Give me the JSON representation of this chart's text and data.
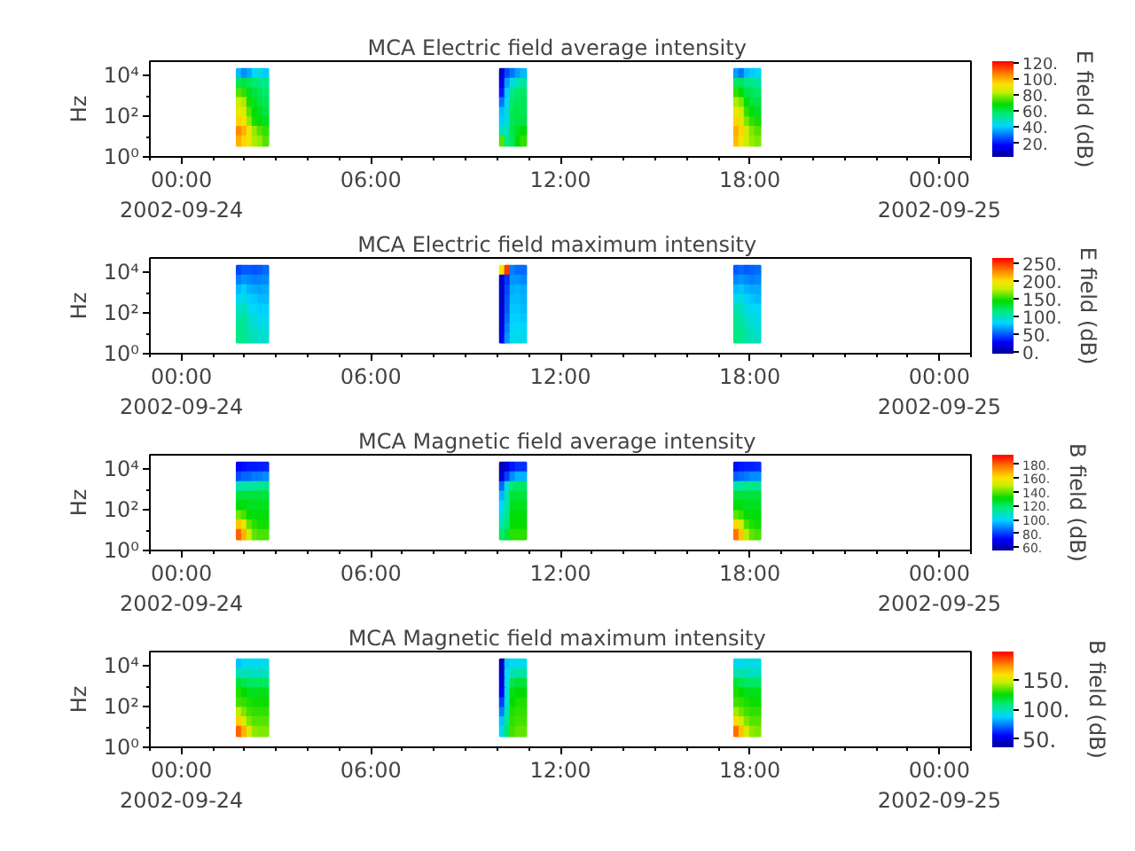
{
  "chart_data": [
    {
      "type": "heatmap",
      "title": "MCA  Electric field average intensity",
      "ylabel": "Hz",
      "clabel": "E field (dB)",
      "log": "y",
      "x": [
        "2002-09-24T01:40",
        "2002-09-24T01:50",
        "2002-09-24T02:00",
        "2002-09-24T02:10",
        "2002-09-24T02:20",
        "2002-09-24T02:30",
        "2002-09-24T02:40",
        "2002-09-24T02:50",
        "2002-09-24T10:00",
        "2002-09-24T10:10",
        "2002-09-24T10:20",
        "2002-09-24T10:30",
        "2002-09-24T10:40",
        "2002-09-24T10:50",
        "2002-09-24T11:00",
        "2002-09-24T17:25",
        "2002-09-24T17:35",
        "2002-09-24T17:45",
        "2002-09-24T17:55",
        "2002-09-24T18:05",
        "2002-09-24T18:15",
        "2002-09-24T18:25"
      ],
      "y": [
        12000,
        4000,
        1350,
        450,
        150,
        50,
        18,
        6
      ],
      "cells": [
        [
          null,
          38,
          33,
          36,
          42,
          45,
          40,
          null,
          null,
          10,
          25,
          30,
          35,
          38,
          null,
          null,
          35,
          30,
          38,
          40,
          42,
          null
        ],
        [
          null,
          60,
          62,
          60,
          58,
          55,
          55,
          null,
          null,
          15,
          35,
          45,
          50,
          52,
          null,
          null,
          58,
          60,
          55,
          55,
          52,
          null
        ],
        [
          null,
          75,
          72,
          65,
          62,
          60,
          58,
          null,
          null,
          20,
          40,
          55,
          58,
          58,
          null,
          null,
          72,
          68,
          62,
          60,
          58,
          null
        ],
        [
          null,
          85,
          82,
          70,
          65,
          62,
          60,
          null,
          null,
          30,
          42,
          58,
          60,
          60,
          null,
          null,
          82,
          78,
          68,
          62,
          62,
          null
        ],
        [
          null,
          90,
          88,
          75,
          68,
          65,
          62,
          null,
          null,
          38,
          45,
          60,
          62,
          60,
          null,
          null,
          90,
          85,
          72,
          68,
          65,
          null
        ],
        [
          null,
          95,
          92,
          80,
          70,
          68,
          65,
          null,
          null,
          40,
          45,
          60,
          62,
          62,
          null,
          null,
          95,
          88,
          78,
          72,
          70,
          null
        ],
        [
          null,
          105,
          100,
          90,
          80,
          75,
          72,
          null,
          null,
          50,
          48,
          62,
          65,
          68,
          null,
          null,
          100,
          95,
          85,
          78,
          75,
          null
        ],
        [
          null,
          100,
          95,
          90,
          82,
          80,
          75,
          null,
          null,
          75,
          55,
          60,
          68,
          72,
          null,
          null,
          98,
          92,
          85,
          80,
          78,
          null
        ]
      ],
      "xlim": [
        "2002-09-23T23:00",
        "2002-09-25T01:00"
      ],
      "xticks": [
        {
          "value": "2002-09-23T23:00",
          "label": null
        },
        {
          "value": "2002-09-24T00:00",
          "label": "00:00\n2002-09-24"
        },
        {
          "value": "2002-09-24T01:00",
          "label": null
        },
        {
          "value": "2002-09-24T02:00",
          "label": null
        },
        {
          "value": "2002-09-24T03:00",
          "label": null
        },
        {
          "value": "2002-09-24T04:00",
          "label": null
        },
        {
          "value": "2002-09-24T05:00",
          "label": null
        },
        {
          "value": "2002-09-24T06:00",
          "label": "06:00"
        },
        {
          "value": "2002-09-24T07:00",
          "label": null
        },
        {
          "value": "2002-09-24T08:00",
          "label": null
        },
        {
          "value": "2002-09-24T09:00",
          "label": null
        },
        {
          "value": "2002-09-24T10:00",
          "label": null
        },
        {
          "value": "2002-09-24T11:00",
          "label": null
        },
        {
          "value": "2002-09-24T12:00",
          "label": "12:00"
        },
        {
          "value": "2002-09-24T13:00",
          "label": null
        },
        {
          "value": "2002-09-24T14:00",
          "label": null
        },
        {
          "value": "2002-09-24T15:00",
          "label": null
        },
        {
          "value": "2002-09-24T16:00",
          "label": null
        },
        {
          "value": "2002-09-24T17:00",
          "label": null
        },
        {
          "value": "2002-09-24T18:00",
          "label": "18:00"
        },
        {
          "value": "2002-09-24T19:00",
          "label": null
        },
        {
          "value": "2002-09-24T20:00",
          "label": null
        },
        {
          "value": "2002-09-24T21:00",
          "label": null
        },
        {
          "value": "2002-09-24T22:00",
          "label": null
        },
        {
          "value": "2002-09-24T23:00",
          "label": null
        },
        {
          "value": "2002-09-25T00:00",
          "label": "00:00\n2002-09-25"
        },
        {
          "value": "2002-09-25T01:00",
          "label": null
        }
      ],
      "ylim": [
        1,
        50000
      ],
      "yticks": [
        {
          "value": 1,
          "label": "10⁰"
        },
        {
          "value": 10,
          "label": null
        },
        {
          "value": 100,
          "label": "10²"
        },
        {
          "value": 1000,
          "label": null
        },
        {
          "value": 10000,
          "label": "10⁴"
        }
      ],
      "clim": [
        3,
        122
      ],
      "cticks": [
        {
          "value": 20,
          "label": "20."
        },
        {
          "value": 40,
          "label": "40."
        },
        {
          "value": 60,
          "label": "60."
        },
        {
          "value": 80,
          "label": "80."
        },
        {
          "value": 100,
          "label": "100."
        },
        {
          "value": 120,
          "label": "120."
        }
      ]
    },
    {
      "type": "heatmap",
      "title": "MCA  Electric field maximum intensity",
      "ylabel": "Hz",
      "clabel": "E field (dB)",
      "log": "y",
      "x": [
        "2002-09-24T01:40",
        "2002-09-24T01:50",
        "2002-09-24T02:00",
        "2002-09-24T02:10",
        "2002-09-24T02:20",
        "2002-09-24T02:30",
        "2002-09-24T02:40",
        "2002-09-24T02:50",
        "2002-09-24T10:00",
        "2002-09-24T10:10",
        "2002-09-24T10:20",
        "2002-09-24T10:30",
        "2002-09-24T10:40",
        "2002-09-24T10:50",
        "2002-09-24T11:00",
        "2002-09-24T17:25",
        "2002-09-24T17:35",
        "2002-09-24T17:45",
        "2002-09-24T17:55",
        "2002-09-24T18:05",
        "2002-09-24T18:15",
        "2002-09-24T18:25"
      ],
      "y": [
        12000,
        4000,
        1350,
        450,
        150,
        50,
        18,
        6
      ],
      "cells": [
        [
          null,
          45,
          50,
          50,
          48,
          50,
          55,
          null,
          null,
          200,
          250,
          60,
          55,
          55,
          null,
          null,
          50,
          55,
          50,
          52,
          55,
          null
        ],
        [
          null,
          60,
          65,
          62,
          60,
          60,
          62,
          null,
          null,
          15,
          40,
          65,
          65,
          62,
          null,
          null,
          62,
          65,
          62,
          60,
          62,
          null
        ],
        [
          null,
          75,
          80,
          72,
          70,
          68,
          70,
          null,
          null,
          12,
          45,
          70,
          72,
          70,
          null,
          null,
          75,
          78,
          72,
          70,
          70,
          null
        ],
        [
          null,
          85,
          90,
          80,
          78,
          75,
          75,
          null,
          null,
          10,
          48,
          75,
          75,
          72,
          null,
          null,
          88,
          90,
          80,
          78,
          75,
          null
        ],
        [
          null,
          95,
          100,
          88,
          82,
          80,
          80,
          null,
          null,
          12,
          50,
          78,
          78,
          75,
          null,
          null,
          100,
          98,
          88,
          85,
          82,
          null
        ],
        [
          null,
          105,
          108,
          95,
          90,
          85,
          85,
          null,
          null,
          15,
          55,
          80,
          80,
          78,
          null,
          null,
          108,
          105,
          95,
          90,
          88,
          null
        ],
        [
          null,
          110,
          112,
          100,
          95,
          92,
          90,
          null,
          null,
          18,
          60,
          82,
          85,
          82,
          null,
          null,
          112,
          110,
          102,
          95,
          92,
          null
        ],
        [
          null,
          112,
          112,
          105,
          100,
          95,
          95,
          null,
          null,
          25,
          65,
          85,
          88,
          85,
          null,
          null,
          115,
          112,
          105,
          100,
          98,
          null
        ]
      ],
      "xlim": [
        "2002-09-23T23:00",
        "2002-09-25T01:00"
      ],
      "xticks": [
        {
          "value": "2002-09-23T23:00",
          "label": null
        },
        {
          "value": "2002-09-24T00:00",
          "label": "00:00\n2002-09-24"
        },
        {
          "value": "2002-09-24T01:00",
          "label": null
        },
        {
          "value": "2002-09-24T02:00",
          "label": null
        },
        {
          "value": "2002-09-24T03:00",
          "label": null
        },
        {
          "value": "2002-09-24T04:00",
          "label": null
        },
        {
          "value": "2002-09-24T05:00",
          "label": null
        },
        {
          "value": "2002-09-24T06:00",
          "label": "06:00"
        },
        {
          "value": "2002-09-24T07:00",
          "label": null
        },
        {
          "value": "2002-09-24T08:00",
          "label": null
        },
        {
          "value": "2002-09-24T09:00",
          "label": null
        },
        {
          "value": "2002-09-24T10:00",
          "label": null
        },
        {
          "value": "2002-09-24T11:00",
          "label": null
        },
        {
          "value": "2002-09-24T12:00",
          "label": "12:00"
        },
        {
          "value": "2002-09-24T13:00",
          "label": null
        },
        {
          "value": "2002-09-24T14:00",
          "label": null
        },
        {
          "value": "2002-09-24T15:00",
          "label": null
        },
        {
          "value": "2002-09-24T16:00",
          "label": null
        },
        {
          "value": "2002-09-24T17:00",
          "label": null
        },
        {
          "value": "2002-09-24T18:00",
          "label": "18:00"
        },
        {
          "value": "2002-09-24T19:00",
          "label": null
        },
        {
          "value": "2002-09-24T20:00",
          "label": null
        },
        {
          "value": "2002-09-24T21:00",
          "label": null
        },
        {
          "value": "2002-09-24T22:00",
          "label": null
        },
        {
          "value": "2002-09-24T23:00",
          "label": null
        },
        {
          "value": "2002-09-25T00:00",
          "label": "00:00\n2002-09-25"
        },
        {
          "value": "2002-09-25T01:00",
          "label": null
        }
      ],
      "ylim": [
        1,
        50000
      ],
      "yticks": [
        {
          "value": 1,
          "label": "10⁰"
        },
        {
          "value": 10,
          "label": null
        },
        {
          "value": 100,
          "label": "10²"
        },
        {
          "value": 1000,
          "label": null
        },
        {
          "value": 10000,
          "label": "10⁴"
        }
      ],
      "clim": [
        -5,
        265
      ],
      "cticks": [
        {
          "value": 0,
          "label": "0."
        },
        {
          "value": 50,
          "label": "50."
        },
        {
          "value": 100,
          "label": "100."
        },
        {
          "value": 150,
          "label": "150."
        },
        {
          "value": 200,
          "label": "200."
        },
        {
          "value": 250,
          "label": "250."
        }
      ]
    },
    {
      "type": "heatmap",
      "title": "MCA  Magnetic field average intensity",
      "ylabel": "Hz",
      "clabel": "B field (dB)",
      "log": "y",
      "x": [
        "2002-09-24T01:40",
        "2002-09-24T01:50",
        "2002-09-24T02:00",
        "2002-09-24T02:10",
        "2002-09-24T02:20",
        "2002-09-24T02:30",
        "2002-09-24T02:40",
        "2002-09-24T02:50",
        "2002-09-24T10:00",
        "2002-09-24T10:10",
        "2002-09-24T10:20",
        "2002-09-24T10:30",
        "2002-09-24T10:40",
        "2002-09-24T10:50",
        "2002-09-24T11:00",
        "2002-09-24T17:25",
        "2002-09-24T17:35",
        "2002-09-24T17:45",
        "2002-09-24T17:55",
        "2002-09-24T18:05",
        "2002-09-24T18:15",
        "2002-09-24T18:25"
      ],
      "y": [
        12000,
        4000,
        1350,
        450,
        150,
        50,
        18,
        6
      ],
      "cells": [
        [
          null,
          72,
          74,
          75,
          75,
          76,
          76,
          null,
          null,
          60,
          68,
          75,
          78,
          78,
          null,
          null,
          73,
          75,
          76,
          76,
          77,
          null
        ],
        [
          null,
          82,
          85,
          85,
          88,
          88,
          90,
          null,
          null,
          65,
          80,
          90,
          95,
          95,
          null,
          null,
          84,
          86,
          88,
          90,
          90,
          null
        ],
        [
          null,
          110,
          112,
          112,
          112,
          115,
          115,
          null,
          null,
          85,
          105,
          118,
          120,
          120,
          null,
          null,
          112,
          112,
          115,
          115,
          115,
          null
        ],
        [
          null,
          125,
          125,
          125,
          125,
          125,
          125,
          null,
          null,
          95,
          110,
          125,
          125,
          125,
          null,
          null,
          125,
          125,
          125,
          125,
          125,
          null
        ],
        [
          null,
          130,
          130,
          128,
          128,
          128,
          128,
          null,
          null,
          100,
          112,
          128,
          128,
          128,
          null,
          null,
          130,
          130,
          128,
          128,
          128,
          null
        ],
        [
          null,
          142,
          138,
          132,
          130,
          130,
          130,
          null,
          null,
          105,
          115,
          130,
          130,
          130,
          null,
          null,
          140,
          136,
          132,
          130,
          130,
          null
        ],
        [
          null,
          165,
          155,
          140,
          135,
          133,
          133,
          null,
          null,
          110,
          118,
          132,
          132,
          132,
          null,
          null,
          162,
          152,
          138,
          134,
          133,
          null
        ],
        [
          null,
          180,
          168,
          150,
          140,
          138,
          138,
          null,
          null,
          120,
          125,
          135,
          135,
          135,
          null,
          null,
          178,
          165,
          148,
          140,
          138,
          null
        ]
      ],
      "xlim": [
        "2002-09-23T23:00",
        "2002-09-25T01:00"
      ],
      "xticks": [
        {
          "value": "2002-09-23T23:00",
          "label": null
        },
        {
          "value": "2002-09-24T00:00",
          "label": "00:00\n2002-09-24"
        },
        {
          "value": "2002-09-24T01:00",
          "label": null
        },
        {
          "value": "2002-09-24T02:00",
          "label": null
        },
        {
          "value": "2002-09-24T03:00",
          "label": null
        },
        {
          "value": "2002-09-24T04:00",
          "label": null
        },
        {
          "value": "2002-09-24T05:00",
          "label": null
        },
        {
          "value": "2002-09-24T06:00",
          "label": "06:00"
        },
        {
          "value": "2002-09-24T07:00",
          "label": null
        },
        {
          "value": "2002-09-24T08:00",
          "label": null
        },
        {
          "value": "2002-09-24T09:00",
          "label": null
        },
        {
          "value": "2002-09-24T10:00",
          "label": null
        },
        {
          "value": "2002-09-24T11:00",
          "label": null
        },
        {
          "value": "2002-09-24T12:00",
          "label": "12:00"
        },
        {
          "value": "2002-09-24T13:00",
          "label": null
        },
        {
          "value": "2002-09-24T14:00",
          "label": null
        },
        {
          "value": "2002-09-24T15:00",
          "label": null
        },
        {
          "value": "2002-09-24T16:00",
          "label": null
        },
        {
          "value": "2002-09-24T17:00",
          "label": null
        },
        {
          "value": "2002-09-24T18:00",
          "label": "18:00"
        },
        {
          "value": "2002-09-24T19:00",
          "label": null
        },
        {
          "value": "2002-09-24T20:00",
          "label": null
        },
        {
          "value": "2002-09-24T21:00",
          "label": null
        },
        {
          "value": "2002-09-24T22:00",
          "label": null
        },
        {
          "value": "2002-09-24T23:00",
          "label": null
        },
        {
          "value": "2002-09-25T00:00",
          "label": "00:00\n2002-09-25"
        },
        {
          "value": "2002-09-25T01:00",
          "label": null
        }
      ],
      "ylim": [
        1,
        50000
      ],
      "yticks": [
        {
          "value": 1,
          "label": "10⁰"
        },
        {
          "value": 10,
          "label": null
        },
        {
          "value": 100,
          "label": "10²"
        },
        {
          "value": 1000,
          "label": null
        },
        {
          "value": 10000,
          "label": "10⁴"
        }
      ],
      "clim": [
        55,
        194
      ],
      "cticks": [
        {
          "value": 60,
          "label": "60."
        },
        {
          "value": 80,
          "label": "80."
        },
        {
          "value": 100,
          "label": "100."
        },
        {
          "value": 120,
          "label": "120."
        },
        {
          "value": 140,
          "label": "140."
        },
        {
          "value": 160,
          "label": "160."
        },
        {
          "value": 180,
          "label": "180."
        }
      ]
    },
    {
      "type": "heatmap",
      "title": "MCA  Magnetic field maximum intensity",
      "ylabel": "Hz",
      "clabel": "B field (dB)",
      "log": "y",
      "x": [
        "2002-09-24T01:40",
        "2002-09-24T01:50",
        "2002-09-24T02:00",
        "2002-09-24T02:10",
        "2002-09-24T02:20",
        "2002-09-24T02:30",
        "2002-09-24T02:40",
        "2002-09-24T02:50",
        "2002-09-24T10:00",
        "2002-09-24T10:10",
        "2002-09-24T10:20",
        "2002-09-24T10:30",
        "2002-09-24T10:40",
        "2002-09-24T10:50",
        "2002-09-24T11:00",
        "2002-09-24T17:25",
        "2002-09-24T17:35",
        "2002-09-24T17:45",
        "2002-09-24T17:55",
        "2002-09-24T18:05",
        "2002-09-24T18:15",
        "2002-09-24T18:25"
      ],
      "y": [
        12000,
        4000,
        1350,
        450,
        150,
        50,
        18,
        6
      ],
      "cells": [
        [
          null,
          85,
          88,
          90,
          90,
          90,
          92,
          null,
          null,
          42,
          85,
          90,
          90,
          90,
          null,
          null,
          90,
          90,
          92,
          92,
          92,
          null
        ],
        [
          null,
          100,
          98,
          100,
          98,
          98,
          98,
          null,
          null,
          45,
          88,
          100,
          102,
          102,
          null,
          null,
          100,
          100,
          100,
          98,
          98,
          null
        ],
        [
          null,
          118,
          115,
          112,
          112,
          112,
          112,
          null,
          null,
          50,
          92,
          115,
          118,
          118,
          null,
          null,
          118,
          115,
          112,
          112,
          112,
          null
        ],
        [
          null,
          128,
          125,
          122,
          122,
          122,
          122,
          null,
          null,
          55,
          95,
          122,
          125,
          125,
          null,
          null,
          128,
          125,
          122,
          122,
          122,
          null
        ],
        [
          null,
          132,
          130,
          128,
          126,
          126,
          126,
          null,
          null,
          65,
          95,
          125,
          128,
          128,
          null,
          null,
          132,
          130,
          128,
          126,
          126,
          null
        ],
        [
          null,
          145,
          138,
          132,
          130,
          130,
          130,
          null,
          null,
          75,
          100,
          128,
          130,
          130,
          null,
          null,
          142,
          136,
          132,
          130,
          130,
          null
        ],
        [
          null,
          162,
          150,
          138,
          134,
          134,
          134,
          null,
          null,
          85,
          105,
          130,
          132,
          132,
          null,
          null,
          160,
          148,
          138,
          134,
          134,
          null
        ],
        [
          null,
          182,
          168,
          150,
          140,
          138,
          138,
          null,
          null,
          90,
          112,
          132,
          135,
          135,
          null,
          null,
          180,
          165,
          150,
          140,
          138,
          null
        ]
      ],
      "xlim": [
        "2002-09-23T23:00",
        "2002-09-25T01:00"
      ],
      "xticks": [
        {
          "value": "2002-09-23T23:00",
          "label": null
        },
        {
          "value": "2002-09-24T00:00",
          "label": "00:00\n2002-09-24"
        },
        {
          "value": "2002-09-24T01:00",
          "label": null
        },
        {
          "value": "2002-09-24T02:00",
          "label": null
        },
        {
          "value": "2002-09-24T03:00",
          "label": null
        },
        {
          "value": "2002-09-24T04:00",
          "label": null
        },
        {
          "value": "2002-09-24T05:00",
          "label": null
        },
        {
          "value": "2002-09-24T06:00",
          "label": "06:00"
        },
        {
          "value": "2002-09-24T07:00",
          "label": null
        },
        {
          "value": "2002-09-24T08:00",
          "label": null
        },
        {
          "value": "2002-09-24T09:00",
          "label": null
        },
        {
          "value": "2002-09-24T10:00",
          "label": null
        },
        {
          "value": "2002-09-24T11:00",
          "label": null
        },
        {
          "value": "2002-09-24T12:00",
          "label": "12:00"
        },
        {
          "value": "2002-09-24T13:00",
          "label": null
        },
        {
          "value": "2002-09-24T14:00",
          "label": null
        },
        {
          "value": "2002-09-24T15:00",
          "label": null
        },
        {
          "value": "2002-09-24T16:00",
          "label": null
        },
        {
          "value": "2002-09-24T17:00",
          "label": null
        },
        {
          "value": "2002-09-24T18:00",
          "label": "18:00"
        },
        {
          "value": "2002-09-24T19:00",
          "label": null
        },
        {
          "value": "2002-09-24T20:00",
          "label": null
        },
        {
          "value": "2002-09-24T21:00",
          "label": null
        },
        {
          "value": "2002-09-24T22:00",
          "label": null
        },
        {
          "value": "2002-09-24T23:00",
          "label": null
        },
        {
          "value": "2002-09-25T00:00",
          "label": "00:00\n2002-09-25"
        },
        {
          "value": "2002-09-25T01:00",
          "label": null
        }
      ],
      "ylim": [
        1,
        50000
      ],
      "yticks": [
        {
          "value": 1,
          "label": "10⁰"
        },
        {
          "value": 10,
          "label": null
        },
        {
          "value": 100,
          "label": "10²"
        },
        {
          "value": 1000,
          "label": null
        },
        {
          "value": 10000,
          "label": "10⁴"
        }
      ],
      "clim": [
        36,
        198
      ],
      "cticks": [
        {
          "value": 50,
          "label": "50."
        },
        {
          "value": 100,
          "label": "100."
        },
        {
          "value": 150,
          "label": "150."
        }
      ]
    }
  ]
}
